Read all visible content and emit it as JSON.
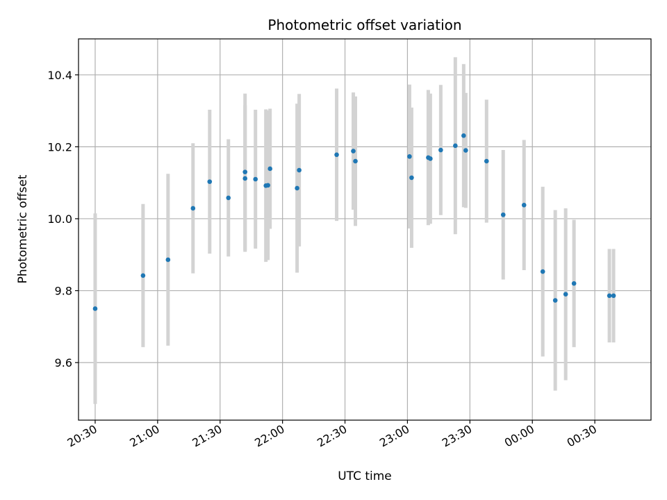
{
  "chart_data": {
    "type": "scatter",
    "title": "Photometric offset variation",
    "xlabel": "UTC time",
    "ylabel": "Photometric offset",
    "xlim": [
      "20:22",
      "00:57"
    ],
    "ylim": [
      9.44,
      10.5
    ],
    "grid": true,
    "x_ticks": [
      "20:30",
      "21:00",
      "21:30",
      "22:00",
      "22:30",
      "23:00",
      "23:30",
      "00:00",
      "00:30"
    ],
    "y_ticks": [
      9.6,
      9.8,
      10.0,
      10.2,
      10.4
    ],
    "colors": {
      "point": "#1f77b4",
      "errorbar": "#d3d3d3",
      "grid": "#b0b0b0"
    },
    "series": [
      {
        "points": [
          {
            "time": "20:30",
            "y": 9.75,
            "ylow": 9.485,
            "yhigh": 10.015
          },
          {
            "time": "20:53",
            "y": 9.842,
            "ylow": 9.643,
            "yhigh": 10.041
          },
          {
            "time": "21:05",
            "y": 9.886,
            "ylow": 9.647,
            "yhigh": 10.125
          },
          {
            "time": "21:17",
            "y": 10.029,
            "ylow": 9.848,
            "yhigh": 10.21
          },
          {
            "time": "21:25",
            "y": 10.103,
            "ylow": 9.903,
            "yhigh": 10.303
          },
          {
            "time": "21:34",
            "y": 10.058,
            "ylow": 9.895,
            "yhigh": 10.221
          },
          {
            "time": "21:42",
            "y": 10.13,
            "ylow": 9.912,
            "yhigh": 10.348
          },
          {
            "time": "21:42",
            "y": 10.112,
            "ylow": 9.908,
            "yhigh": 10.316
          },
          {
            "time": "21:47",
            "y": 10.11,
            "ylow": 9.917,
            "yhigh": 10.303
          },
          {
            "time": "21:52",
            "y": 10.092,
            "ylow": 9.88,
            "yhigh": 10.304
          },
          {
            "time": "21:53",
            "y": 10.093,
            "ylow": 9.885,
            "yhigh": 10.301
          },
          {
            "time": "21:54",
            "y": 10.139,
            "ylow": 9.972,
            "yhigh": 10.306
          },
          {
            "time": "22:07",
            "y": 10.085,
            "ylow": 9.85,
            "yhigh": 10.32
          },
          {
            "time": "22:08",
            "y": 10.135,
            "ylow": 9.923,
            "yhigh": 10.347
          },
          {
            "time": "22:26",
            "y": 10.178,
            "ylow": 9.994,
            "yhigh": 10.362
          },
          {
            "time": "22:34",
            "y": 10.188,
            "ylow": 10.025,
            "yhigh": 10.351
          },
          {
            "time": "22:35",
            "y": 10.16,
            "ylow": 9.98,
            "yhigh": 10.34
          },
          {
            "time": "23:01",
            "y": 10.173,
            "ylow": 9.973,
            "yhigh": 10.373
          },
          {
            "time": "23:02",
            "y": 10.114,
            "ylow": 9.919,
            "yhigh": 10.309
          },
          {
            "time": "23:10",
            "y": 10.17,
            "ylow": 9.982,
            "yhigh": 10.358
          },
          {
            "time": "23:11",
            "y": 10.167,
            "ylow": 9.986,
            "yhigh": 10.348
          },
          {
            "time": "23:16",
            "y": 10.191,
            "ylow": 10.01,
            "yhigh": 10.372
          },
          {
            "time": "23:23",
            "y": 10.203,
            "ylow": 9.957,
            "yhigh": 10.449
          },
          {
            "time": "23:27",
            "y": 10.231,
            "ylow": 10.032,
            "yhigh": 10.43
          },
          {
            "time": "23:28",
            "y": 10.19,
            "ylow": 10.03,
            "yhigh": 10.35
          },
          {
            "time": "23:38",
            "y": 10.16,
            "ylow": 9.989,
            "yhigh": 10.331
          },
          {
            "time": "23:46",
            "y": 10.011,
            "ylow": 9.831,
            "yhigh": 10.191
          },
          {
            "time": "23:56",
            "y": 10.038,
            "ylow": 9.857,
            "yhigh": 10.219
          },
          {
            "time": "00:05",
            "y": 9.853,
            "ylow": 9.617,
            "yhigh": 10.089
          },
          {
            "time": "00:11",
            "y": 9.773,
            "ylow": 9.522,
            "yhigh": 10.024
          },
          {
            "time": "00:16",
            "y": 9.79,
            "ylow": 9.551,
            "yhigh": 10.029
          },
          {
            "time": "00:20",
            "y": 9.82,
            "ylow": 9.643,
            "yhigh": 9.997
          },
          {
            "time": "00:37",
            "y": 9.786,
            "ylow": 9.656,
            "yhigh": 9.916
          },
          {
            "time": "00:39",
            "y": 9.786,
            "ylow": 9.656,
            "yhigh": 9.916
          }
        ]
      }
    ]
  }
}
